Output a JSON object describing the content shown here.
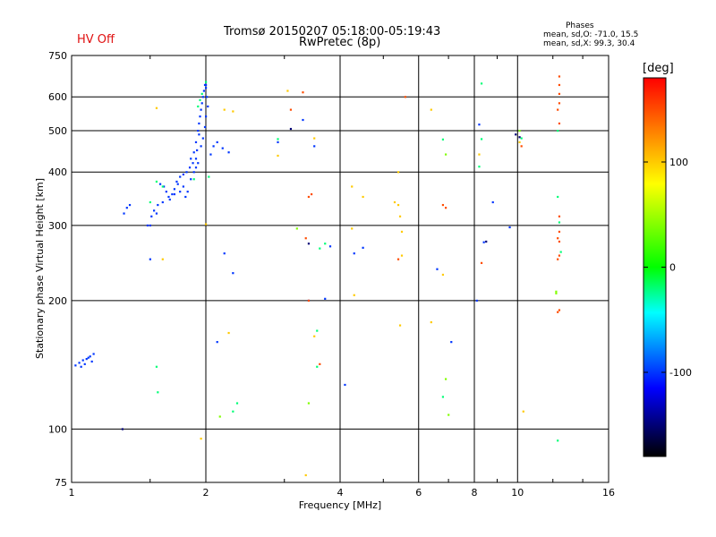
{
  "header": {
    "hv_status": "HV Off",
    "title_line1": "Tromsø 20150207 05:18:00-05:19:43",
    "title_line2": "RwPretec (8p)",
    "phases_title": "Phases",
    "phases_line1": "mean, sd,O: -71.0, 15.5",
    "phases_line2": "mean, sd,X:  99.3, 30.4"
  },
  "colors": {
    "hv_off": "#e01010",
    "grid": "#000000",
    "colorbar": [
      "#ff0000",
      "#ffff00",
      "#00ff00",
      "#00ffff",
      "#0000ff",
      "#000000"
    ]
  },
  "chart_data": {
    "type": "scatter",
    "xlabel": "Frequency [MHz]",
    "ylabel": "Stationary phase Virtual Height [km]",
    "xscale": "log",
    "yscale": "log",
    "xlim": [
      1,
      16
    ],
    "ylim": [
      75,
      750
    ],
    "xticks": [
      1,
      2,
      4,
      6,
      8,
      10,
      16
    ],
    "yticks": [
      75,
      100,
      200,
      300,
      400,
      500,
      600,
      750
    ],
    "grid": true,
    "colorbar": {
      "title": "[deg]",
      "range": [
        -180,
        180
      ],
      "ticks": [
        100,
        0,
        -100
      ]
    },
    "series": [
      {
        "color_value": -100,
        "points": [
          [
            1.04,
            143
          ],
          [
            1.06,
            145
          ],
          [
            1.07,
            142
          ],
          [
            1.08,
            146
          ],
          [
            1.1,
            148
          ],
          [
            1.11,
            144
          ],
          [
            1.02,
            141
          ],
          [
            1.05,
            140
          ],
          [
            1.09,
            147
          ],
          [
            1.12,
            150
          ],
          [
            1.5,
            300
          ],
          [
            1.55,
            320
          ],
          [
            1.6,
            340
          ],
          [
            1.65,
            350
          ],
          [
            1.7,
            355
          ],
          [
            1.75,
            360
          ],
          [
            1.72,
            380
          ],
          [
            1.78,
            370
          ],
          [
            1.8,
            350
          ],
          [
            1.82,
            360
          ],
          [
            1.85,
            385
          ],
          [
            1.88,
            400
          ],
          [
            1.9,
            410
          ],
          [
            1.92,
            420
          ],
          [
            1.85,
            430
          ],
          [
            1.88,
            445
          ],
          [
            1.9,
            470
          ],
          [
            1.92,
            500
          ],
          [
            1.93,
            520
          ],
          [
            1.94,
            540
          ],
          [
            1.95,
            560
          ],
          [
            1.96,
            580
          ],
          [
            1.97,
            600
          ],
          [
            1.98,
            620
          ],
          [
            1.99,
            640
          ],
          [
            2.0,
            630
          ],
          [
            2.01,
            600
          ],
          [
            2.02,
            570
          ],
          [
            1.95,
            460
          ],
          [
            1.97,
            480
          ],
          [
            1.99,
            510
          ],
          [
            2.0,
            540
          ],
          [
            1.93,
            490
          ],
          [
            1.91,
            450
          ],
          [
            1.9,
            430
          ],
          [
            1.87,
            420
          ],
          [
            1.84,
            410
          ],
          [
            1.81,
            400
          ],
          [
            1.78,
            395
          ],
          [
            1.75,
            390
          ],
          [
            1.73,
            375
          ],
          [
            1.7,
            365
          ],
          [
            1.68,
            355
          ],
          [
            1.66,
            345
          ],
          [
            1.63,
            360
          ],
          [
            1.61,
            370
          ],
          [
            1.58,
            375
          ],
          [
            1.56,
            335
          ],
          [
            1.53,
            325
          ],
          [
            1.51,
            315
          ],
          [
            1.48,
            300
          ],
          [
            1.31,
            320
          ],
          [
            1.33,
            330
          ],
          [
            1.35,
            335
          ],
          [
            2.05,
            440
          ],
          [
            2.08,
            460
          ],
          [
            2.12,
            470
          ],
          [
            2.18,
            455
          ],
          [
            2.25,
            445
          ],
          [
            2.9,
            470
          ],
          [
            3.5,
            460
          ],
          [
            3.3,
            530
          ],
          [
            3.4,
            200
          ],
          [
            3.7,
            202
          ],
          [
            2.2,
            258
          ],
          [
            2.3,
            232
          ],
          [
            3.8,
            268
          ],
          [
            4.3,
            258
          ],
          [
            4.5,
            266
          ],
          [
            6.6,
            237
          ],
          [
            8.2,
            517
          ],
          [
            8.1,
            200
          ],
          [
            8.4,
            274
          ],
          [
            9.6,
            297
          ],
          [
            7.1,
            160
          ],
          [
            2.12,
            160
          ],
          [
            2.0,
            640
          ],
          [
            1.5,
            250
          ],
          [
            4.1,
            127
          ],
          [
            8.8,
            340
          ]
        ]
      },
      {
        "color_value": -20,
        "points": [
          [
            1.92,
            570
          ],
          [
            1.94,
            590
          ],
          [
            1.96,
            610
          ],
          [
            2.0,
            650
          ],
          [
            2.03,
            390
          ],
          [
            1.88,
            385
          ],
          [
            1.55,
            380
          ],
          [
            1.6,
            370
          ],
          [
            1.5,
            340
          ],
          [
            2.3,
            110
          ],
          [
            2.35,
            115
          ],
          [
            1.55,
            140
          ],
          [
            1.56,
            122
          ],
          [
            2.9,
            478
          ],
          [
            3.6,
            265
          ],
          [
            3.7,
            272
          ],
          [
            6.8,
            477
          ],
          [
            8.3,
            478
          ],
          [
            8.2,
            412
          ],
          [
            8.3,
            645
          ],
          [
            10.2,
            480
          ],
          [
            12.3,
            500
          ],
          [
            12.3,
            350
          ],
          [
            12.4,
            305
          ],
          [
            12.5,
            260
          ],
          [
            12.3,
            94
          ],
          [
            6.8,
            119
          ],
          [
            3.55,
            170
          ],
          [
            3.55,
            140
          ]
        ]
      },
      {
        "color_value": 40,
        "points": [
          [
            3.4,
            115
          ],
          [
            6.9,
            440
          ],
          [
            7.0,
            108
          ],
          [
            6.9,
            131
          ],
          [
            12.2,
            210
          ],
          [
            12.2,
            208
          ],
          [
            10.1,
            500
          ],
          [
            3.2,
            295
          ],
          [
            2.15,
            107
          ]
        ]
      },
      {
        "color_value": 100,
        "points": [
          [
            1.55,
            565
          ],
          [
            1.6,
            250
          ],
          [
            1.95,
            95
          ],
          [
            2.0,
            302
          ],
          [
            2.2,
            560
          ],
          [
            2.25,
            168
          ],
          [
            2.3,
            555
          ],
          [
            2.9,
            437
          ],
          [
            3.05,
            620
          ],
          [
            3.5,
            165
          ],
          [
            3.5,
            480
          ],
          [
            4.25,
            370
          ],
          [
            4.3,
            206
          ],
          [
            4.5,
            350
          ],
          [
            5.4,
            400
          ],
          [
            5.3,
            340
          ],
          [
            5.4,
            335
          ],
          [
            5.45,
            315
          ],
          [
            5.5,
            290
          ],
          [
            5.5,
            255
          ],
          [
            5.45,
            175
          ],
          [
            6.4,
            560
          ],
          [
            6.4,
            178
          ],
          [
            6.8,
            230
          ],
          [
            8.2,
            440
          ],
          [
            10.1,
            470
          ],
          [
            10.3,
            110
          ],
          [
            3.35,
            78
          ],
          [
            4.25,
            295
          ]
        ]
      },
      {
        "color_value": 150,
        "points": [
          [
            3.3,
            615
          ],
          [
            3.1,
            560
          ],
          [
            3.4,
            350
          ],
          [
            3.45,
            355
          ],
          [
            3.35,
            280
          ],
          [
            5.4,
            250
          ],
          [
            5.6,
            600
          ],
          [
            6.8,
            335
          ],
          [
            6.9,
            330
          ],
          [
            10.2,
            460
          ],
          [
            12.4,
            670
          ],
          [
            12.4,
            640
          ],
          [
            12.4,
            610
          ],
          [
            12.4,
            580
          ],
          [
            12.3,
            560
          ],
          [
            12.4,
            520
          ],
          [
            12.4,
            315
          ],
          [
            12.4,
            290
          ],
          [
            12.3,
            280
          ],
          [
            12.4,
            275
          ],
          [
            12.4,
            255
          ],
          [
            12.3,
            250
          ],
          [
            12.4,
            190
          ],
          [
            12.3,
            188
          ],
          [
            8.3,
            245
          ],
          [
            3.4,
            200
          ],
          [
            3.6,
            142
          ]
        ]
      },
      {
        "color_value": -150,
        "points": [
          [
            1.3,
            100
          ],
          [
            3.1,
            505
          ],
          [
            3.4,
            272
          ],
          [
            8.5,
            275
          ],
          [
            9.9,
            490
          ],
          [
            10.1,
            483
          ]
        ]
      }
    ]
  }
}
